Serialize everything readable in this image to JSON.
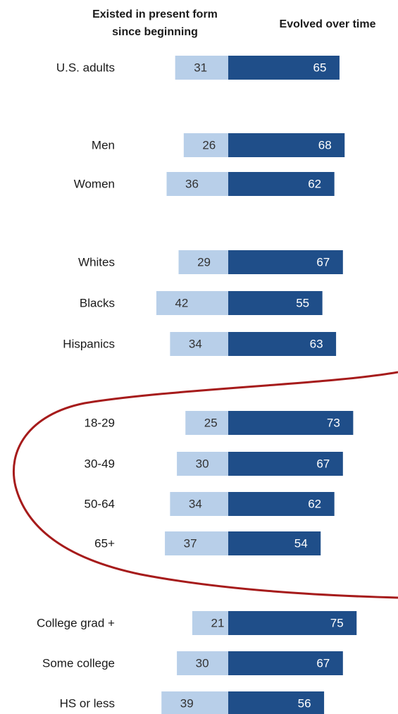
{
  "chart_data": {
    "type": "bar",
    "headers": {
      "left_line1": "Existed in present form",
      "left_line2": "since beginning",
      "right": "Evolved over time"
    },
    "series": [
      {
        "name": "Existed in present form since beginning",
        "color": "#b8cfe9"
      },
      {
        "name": "Evolved over time",
        "color": "#1f4e89"
      }
    ],
    "rows": [
      {
        "label": "U.S. adults",
        "existed": 31,
        "evolved": 65
      },
      {
        "label": "Men",
        "existed": 26,
        "evolved": 68
      },
      {
        "label": "Women",
        "existed": 36,
        "evolved": 62
      },
      {
        "label": "Whites",
        "existed": 29,
        "evolved": 67
      },
      {
        "label": "Blacks",
        "existed": 42,
        "evolved": 55
      },
      {
        "label": "Hispanics",
        "existed": 34,
        "evolved": 63
      },
      {
        "label": "18-29",
        "existed": 25,
        "evolved": 73
      },
      {
        "label": "30-49",
        "existed": 30,
        "evolved": 67
      },
      {
        "label": "50-64",
        "existed": 34,
        "evolved": 62
      },
      {
        "label": "65+",
        "existed": 37,
        "evolved": 54
      },
      {
        "label": "College grad +",
        "existed": 21,
        "evolved": 75
      },
      {
        "label": "Some college",
        "existed": 30,
        "evolved": 67
      },
      {
        "label": "HS or less",
        "existed": 39,
        "evolved": 56
      }
    ],
    "annotation": {
      "shape": "ellipse-outline",
      "color": "#a61b1b",
      "highlights": [
        "18-29",
        "30-49",
        "50-64",
        "65+"
      ]
    }
  }
}
